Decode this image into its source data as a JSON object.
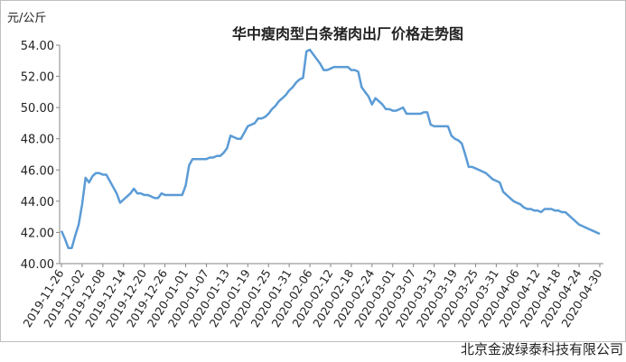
{
  "chart_data": {
    "type": "line",
    "title": "华中瘦肉型白条猪肉出厂价格走势图",
    "y_label": "元/公斤",
    "footer": "北京金波绿泰科技有限公司",
    "color": "#5b9bd5",
    "grid": false,
    "ylim": [
      40,
      54
    ],
    "yticks": [
      {
        "value": 40,
        "label": "40.00"
      },
      {
        "value": 42,
        "label": "42.00"
      },
      {
        "value": 44,
        "label": "44.00"
      },
      {
        "value": 46,
        "label": "46.00"
      },
      {
        "value": 48,
        "label": "48.00"
      },
      {
        "value": 50,
        "label": "50.00"
      },
      {
        "value": 52,
        "label": "52.00"
      },
      {
        "value": 54,
        "label": "54.00"
      }
    ],
    "categories": [
      "2019-11-26",
      null,
      null,
      null,
      null,
      null,
      "2019-12-02",
      null,
      null,
      null,
      null,
      null,
      "2019-12-08",
      null,
      null,
      null,
      null,
      null,
      "2019-12-14",
      null,
      null,
      null,
      null,
      null,
      "2019-12-20",
      null,
      null,
      null,
      null,
      null,
      "2019-12-26",
      null,
      null,
      null,
      null,
      null,
      "2020-01-01",
      null,
      null,
      null,
      null,
      null,
      "2020-01-07",
      null,
      null,
      null,
      null,
      null,
      "2020-01-13",
      null,
      null,
      null,
      null,
      null,
      "2020-01-19",
      null,
      null,
      null,
      null,
      null,
      "2020-01-25",
      null,
      null,
      null,
      null,
      null,
      "2020-01-31",
      null,
      null,
      null,
      null,
      null,
      "2020-02-06",
      null,
      null,
      null,
      null,
      null,
      "2020-02-12",
      null,
      null,
      null,
      null,
      null,
      "2020-02-18",
      null,
      null,
      null,
      null,
      null,
      "2020-02-24",
      null,
      null,
      null,
      null,
      null,
      "2020-03-01",
      null,
      null,
      null,
      null,
      null,
      "2020-03-07",
      null,
      null,
      null,
      null,
      null,
      "2020-03-13",
      null,
      null,
      null,
      null,
      null,
      "2020-03-19",
      null,
      null,
      null,
      null,
      null,
      "2020-03-25",
      null,
      null,
      null,
      null,
      null,
      "2020-03-31",
      null,
      null,
      null,
      null,
      null,
      "2020-04-06",
      null,
      null,
      null,
      null,
      null,
      "2020-04-12",
      null,
      null,
      null,
      null,
      null,
      "2020-04-18",
      null,
      null,
      null,
      null,
      null,
      "2020-04-24",
      null,
      null,
      null,
      null,
      null,
      "2020-04-30"
    ],
    "values": [
      42.1,
      41.6,
      41.0,
      41.0,
      41.8,
      42.5,
      43.8,
      45.5,
      45.2,
      45.6,
      45.8,
      45.8,
      45.7,
      45.7,
      45.3,
      44.9,
      44.5,
      43.9,
      44.1,
      44.3,
      44.5,
      44.8,
      44.5,
      44.5,
      44.4,
      44.4,
      44.3,
      44.2,
      44.2,
      44.5,
      44.4,
      44.4,
      44.4,
      44.4,
      44.4,
      44.4,
      45.0,
      46.3,
      46.7,
      46.7,
      46.7,
      46.7,
      46.7,
      46.8,
      46.8,
      46.9,
      46.9,
      47.1,
      47.4,
      48.2,
      48.1,
      48.0,
      48.0,
      48.4,
      48.8,
      48.9,
      49.0,
      49.3,
      49.3,
      49.4,
      49.6,
      49.9,
      50.1,
      50.4,
      50.6,
      50.8,
      51.1,
      51.3,
      51.6,
      51.8,
      51.9,
      53.6,
      53.7,
      53.4,
      53.1,
      52.8,
      52.4,
      52.4,
      52.5,
      52.6,
      52.6,
      52.6,
      52.6,
      52.6,
      52.4,
      52.4,
      52.3,
      51.3,
      51.0,
      50.7,
      50.2,
      50.6,
      50.4,
      50.2,
      49.9,
      49.9,
      49.8,
      49.8,
      49.9,
      50.0,
      49.6,
      49.6,
      49.6,
      49.6,
      49.6,
      49.7,
      49.7,
      48.9,
      48.8,
      48.8,
      48.8,
      48.8,
      48.8,
      48.2,
      48.0,
      47.9,
      47.7,
      47.0,
      46.2,
      46.2,
      46.1,
      46.0,
      45.9,
      45.8,
      45.6,
      45.4,
      45.3,
      45.2,
      44.6,
      44.4,
      44.2,
      44.0,
      43.9,
      43.8,
      43.6,
      43.5,
      43.5,
      43.4,
      43.4,
      43.3,
      43.5,
      43.5,
      43.5,
      43.4,
      43.4,
      43.3,
      43.3,
      43.1,
      42.9,
      42.7,
      42.5,
      42.4,
      42.3,
      42.2,
      42.1,
      42.0,
      41.9
    ]
  }
}
